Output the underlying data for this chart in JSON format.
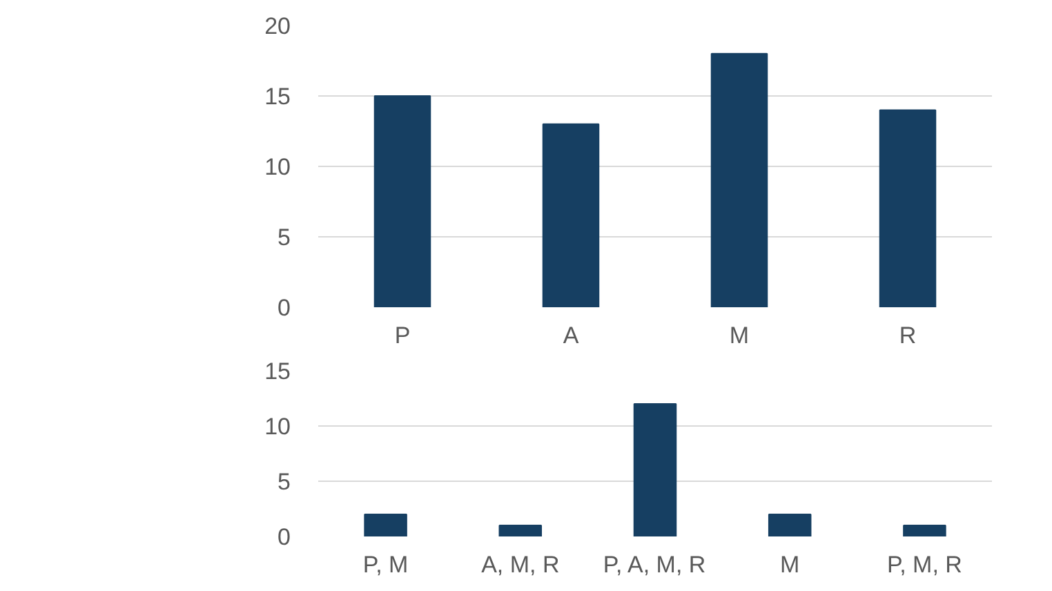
{
  "chart_data": [
    {
      "type": "bar",
      "categories": [
        "P",
        "A",
        "M",
        "R"
      ],
      "values": [
        15,
        13,
        18,
        14
      ],
      "color": "#163f62",
      "ylim": [
        0,
        20
      ],
      "yticks": [
        0,
        5,
        10,
        15,
        20
      ],
      "grid": "y"
    },
    {
      "type": "bar",
      "categories": [
        "P, M",
        "A, M, R",
        "P, A, M, R",
        "M",
        "P, M, R"
      ],
      "values": [
        2,
        1,
        12,
        2,
        1
      ],
      "color": "#163f62",
      "ylim": [
        0,
        15
      ],
      "yticks": [
        0,
        5,
        10,
        15
      ],
      "grid": "y"
    }
  ]
}
